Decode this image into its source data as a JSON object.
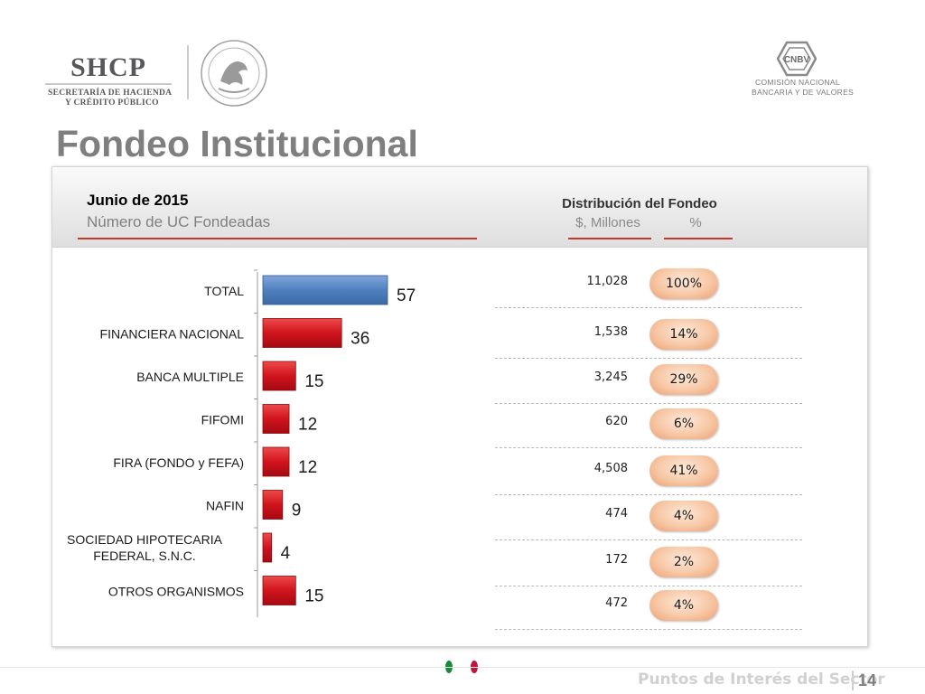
{
  "header": {
    "shcp_name": "SHCP",
    "shcp_line1": "SECRETARÍA DE HACIENDA",
    "shcp_line2": "Y CRÉDITO PÚBLICO",
    "cnbv_abbr": "CNBV",
    "cnbv_line1": "COMISIÓN NACIONAL",
    "cnbv_line2": "BANCARIA Y DE VALORES"
  },
  "title": "Fondeo Institucional",
  "panel": {
    "date": "Junio de 2015",
    "subtitle": "Número de UC Fondeadas",
    "dist_title": "Distribución del Fondeo",
    "col_millones": "$, Millones",
    "col_pct": "%"
  },
  "chart_data": {
    "type": "bar",
    "orientation": "horizontal",
    "categories": [
      "TOTAL",
      "FINANCIERA NACIONAL",
      "BANCA MULTIPLE",
      "FIFOMI",
      "FIRA (FONDO y FEFA)",
      "NAFIN",
      "SOCIEDAD HIPOTECARIA FEDERAL, S.N.C.",
      "OTROS ORGANISMOS"
    ],
    "values": [
      57,
      36,
      15,
      12,
      12,
      9,
      4,
      15
    ],
    "colors": {
      "total": "#4f81bd",
      "others": "#d0141e"
    }
  },
  "distribution": [
    {
      "millones": "11,028",
      "pct": "100%"
    },
    {
      "millones": "1,538",
      "pct": "14%"
    },
    {
      "millones": "3,245",
      "pct": "29%"
    },
    {
      "millones": "620",
      "pct": "6%"
    },
    {
      "millones": "4,508",
      "pct": "41%"
    },
    {
      "millones": "474",
      "pct": "4%"
    },
    {
      "millones": "172",
      "pct": "2%"
    },
    {
      "millones": "472",
      "pct": "4%"
    }
  ],
  "footer": {
    "text": "Puntos de Interés del Sector",
    "page": "14"
  }
}
